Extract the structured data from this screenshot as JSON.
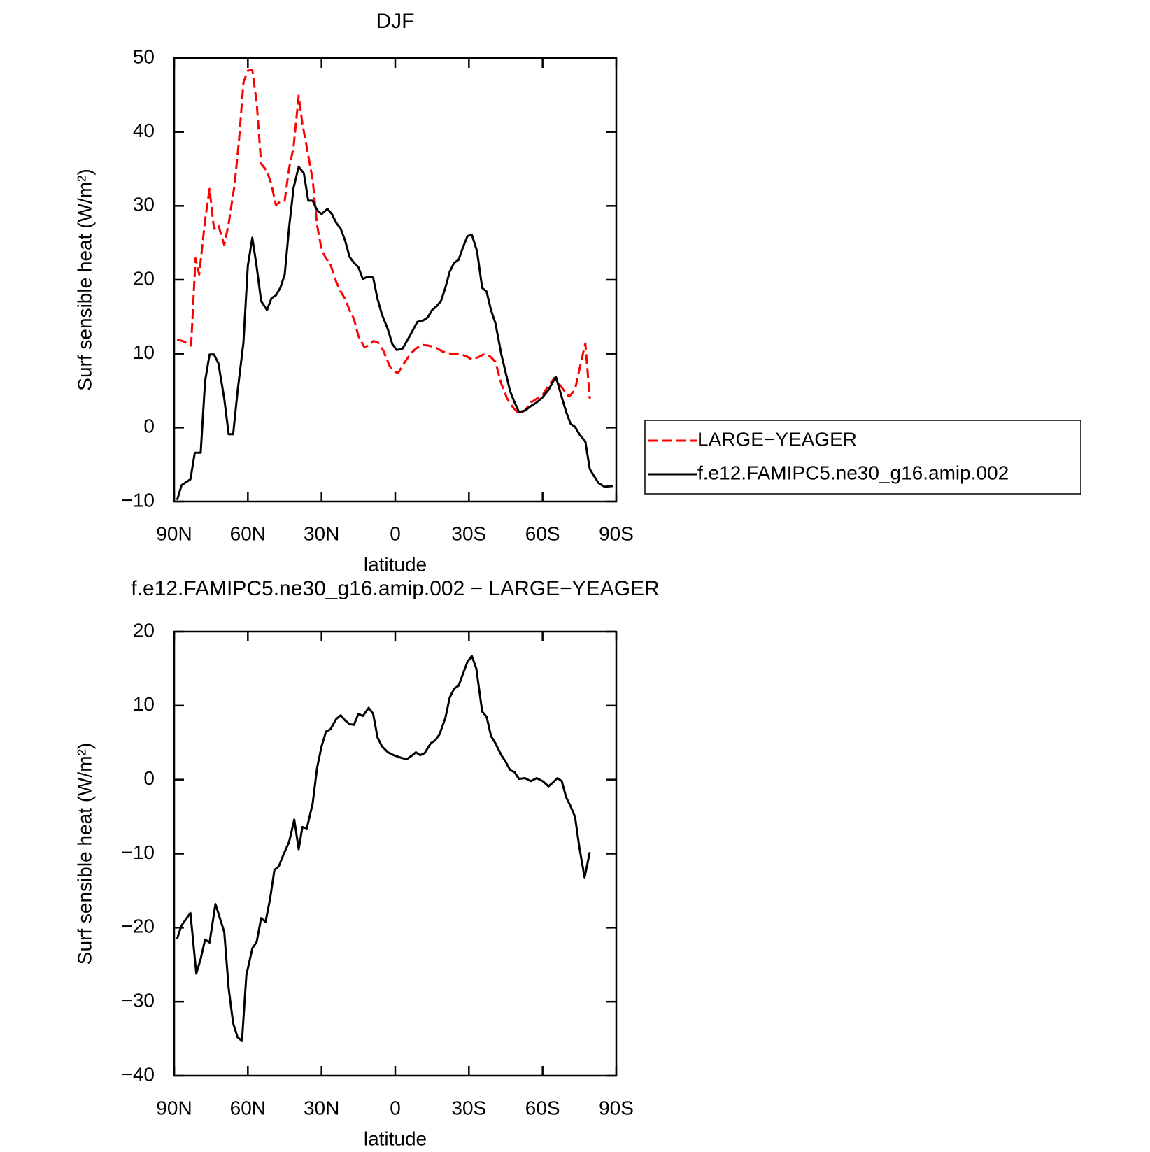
{
  "chart_data": [
    {
      "type": "line",
      "title": "DJF",
      "xlabel": "latitude",
      "ylabel": "Surf sensible heat (W/m²)",
      "xlim": [
        90,
        -90
      ],
      "xticks": [
        {
          "value": 90,
          "label": "90N"
        },
        {
          "value": 60,
          "label": "60N"
        },
        {
          "value": 30,
          "label": "30N"
        },
        0,
        {
          "value": -30,
          "label": "30S"
        },
        {
          "value": -60,
          "label": "60S"
        },
        {
          "value": -90,
          "label": "90S"
        }
      ],
      "ylim": [
        -10,
        50
      ],
      "yticks": [
        {
          "value": -10,
          "label": "−10"
        },
        0,
        10,
        20,
        30,
        40,
        50
      ],
      "legend": "right",
      "series": [
        {
          "name": "LARGE−YEAGER",
          "color": "#ff0000",
          "line_style": "dashed",
          "x": [
            88.8,
            86.4,
            83.1,
            81.3,
            79.8,
            77.4,
            75.6,
            73.8,
            72,
            69.6,
            67.8,
            65.4,
            63.6,
            61.8,
            60,
            58.2,
            56.4,
            54.6,
            52.2,
            50.4,
            48.6,
            46.8,
            45,
            43.2,
            41.4,
            39.3,
            37.8,
            36,
            33.6,
            31.8,
            30,
            28.2,
            26.4,
            24,
            22.2,
            20.4,
            18.6,
            16.8,
            15,
            12.6,
            10.8,
            9,
            7.2,
            4.8,
            2.4,
            0.6,
            -1.2,
            -3.6,
            -6,
            -8.4,
            -10.8,
            -13.2,
            -16.2,
            -19.2,
            -22.8,
            -26.4,
            -28.8,
            -31.2,
            -33.6,
            -36,
            -38.4,
            -40.8,
            -43.2,
            -45.6,
            -48,
            -50.4,
            -52.8,
            -55.2,
            -57.6,
            -60,
            -62.4,
            -64.8,
            -67.2,
            -69,
            -70.8,
            -73.2,
            -75,
            -77.4,
            -79.2
          ],
          "values": [
            11.9,
            11.7,
            11.1,
            22.9,
            20.7,
            28.1,
            32.3,
            26.9,
            27.4,
            24.7,
            27.6,
            32.9,
            38.9,
            46.7,
            48.3,
            48.4,
            43.9,
            35.7,
            34.7,
            32.9,
            30.1,
            30.6,
            30.7,
            35.1,
            37.9,
            44.9,
            41.1,
            37.9,
            33.5,
            27.4,
            24.1,
            22.9,
            22.1,
            19.7,
            18.4,
            17.4,
            15.9,
            14.7,
            12.4,
            10.9,
            11.1,
            11.7,
            11.6,
            10.4,
            8.4,
            7.6,
            7.4,
            8.7,
            9.9,
            10.7,
            11.2,
            11.1,
            10.9,
            10.3,
            10.0,
            9.9,
            9.7,
            9.2,
            9.5,
            9.9,
            9.7,
            8.9,
            5.9,
            3.9,
            2.7,
            1.9,
            2.3,
            3.4,
            3.9,
            4.4,
            5.7,
            6.7,
            5.7,
            4.9,
            4.2,
            5.1,
            7.9,
            11.4,
            3.9
          ]
        },
        {
          "name": "f.e12.FAMIPC5.ne30_g16.amip.002",
          "color": "#000000",
          "line_style": "solid",
          "x": [
            88.8,
            87,
            83.4,
            81.6,
            79.2,
            77.4,
            75.6,
            73.8,
            72,
            69.6,
            67.8,
            66,
            64.2,
            61.8,
            60,
            58.2,
            56.4,
            54.6,
            52.2,
            50.4,
            48.6,
            46.8,
            45,
            43.2,
            41.4,
            39.3,
            37.2,
            35.4,
            33.6,
            31.8,
            30,
            27.6,
            25.8,
            24,
            22.2,
            20.4,
            18.6,
            16.8,
            15,
            13.2,
            11.4,
            9,
            7.2,
            5.4,
            3,
            1.2,
            -0.6,
            -3,
            -5.4,
            -9,
            -11.4,
            -13.2,
            -15,
            -16.8,
            -18.6,
            -20.4,
            -22.2,
            -24,
            -25.8,
            -27.6,
            -29.4,
            -31.2,
            -33.3,
            -35.4,
            -37.2,
            -39,
            -40.8,
            -43.2,
            -45,
            -46.8,
            -48.6,
            -50.4,
            -52.8,
            -55.2,
            -57.6,
            -60,
            -62.4,
            -65.4,
            -67.8,
            -69.6,
            -71.4,
            -73.2,
            -75,
            -77.4,
            -79.2,
            -81,
            -82.8,
            -85.2,
            -88.8
          ],
          "values": [
            -9.8,
            -7.8,
            -7.0,
            -3.4,
            -3.4,
            6.3,
            9.9,
            9.9,
            8.7,
            3.9,
            -0.9,
            -0.9,
            4.9,
            11.5,
            21.9,
            25.7,
            21.7,
            17.1,
            15.9,
            17.5,
            17.9,
            18.9,
            20.7,
            27.1,
            32.4,
            35.3,
            34.4,
            30.7,
            30.7,
            29.4,
            28.9,
            29.6,
            28.9,
            27.7,
            26.9,
            25.3,
            23.1,
            22.3,
            21.7,
            20.1,
            20.4,
            20.3,
            17.4,
            15.3,
            13.3,
            11.3,
            10.5,
            10.7,
            12.1,
            14.3,
            14.5,
            14.9,
            15.9,
            16.4,
            17.1,
            18.9,
            21.1,
            22.3,
            22.7,
            24.4,
            25.9,
            26.1,
            23.9,
            18.9,
            18.4,
            15.9,
            14.1,
            9.9,
            7.4,
            4.9,
            3.4,
            2.1,
            2.3,
            2.9,
            3.4,
            4.1,
            5.1,
            6.9,
            4.1,
            2.1,
            0.5,
            0.1,
            -0.9,
            -1.9,
            -5.6,
            -6.6,
            -7.5,
            -8.0,
            -7.9
          ]
        }
      ]
    },
    {
      "type": "line",
      "title": "f.e12.FAMIPC5.ne30_g16.amip.002 − LARGE−YEAGER",
      "xlabel": "latitude",
      "ylabel": "Surf sensible heat (W/m²)",
      "xlim": [
        90,
        -90
      ],
      "xticks": [
        {
          "value": 90,
          "label": "90N"
        },
        {
          "value": 60,
          "label": "60N"
        },
        {
          "value": 30,
          "label": "30N"
        },
        0,
        {
          "value": -30,
          "label": "30S"
        },
        {
          "value": -60,
          "label": "60S"
        },
        {
          "value": -90,
          "label": "90S"
        }
      ],
      "ylim": [
        -40,
        20
      ],
      "yticks": [
        {
          "value": -40,
          "label": "−40"
        },
        {
          "value": -30,
          "label": "−30"
        },
        {
          "value": -20,
          "label": "−20"
        },
        {
          "value": -10,
          "label": "−10"
        },
        0,
        10,
        20
      ],
      "series": [
        {
          "color": "#000000",
          "line_style": "solid",
          "x": [
            88.8,
            87,
            83.4,
            81,
            79.2,
            77.4,
            75.6,
            73.2,
            71.4,
            69.6,
            67.8,
            66,
            64.2,
            62.4,
            60.6,
            58.2,
            56.4,
            54.6,
            52.8,
            51,
            49.2,
            47.4,
            45.6,
            43.2,
            41.1,
            39.3,
            37.8,
            36,
            33.6,
            31.8,
            30,
            28.2,
            26.4,
            24,
            22.2,
            20.4,
            18.6,
            16.8,
            15,
            13.2,
            10.8,
            9,
            7.2,
            5.4,
            3,
            0.6,
            -1.2,
            -3,
            -4.8,
            -6.6,
            -8.4,
            -10.2,
            -12,
            -14.4,
            -16.2,
            -18,
            -20.4,
            -22.2,
            -24,
            -25.8,
            -27.6,
            -29.4,
            -31.2,
            -33,
            -35.4,
            -37.2,
            -39,
            -40.8,
            -43.2,
            -45,
            -46.8,
            -48.6,
            -50.4,
            -52.8,
            -55.2,
            -57.6,
            -60,
            -62.4,
            -64.2,
            -66,
            -67.8,
            -69.6,
            -71.4,
            -73.2,
            -75,
            -77.1,
            -79.2
          ],
          "values": [
            -21.5,
            -19.7,
            -18.0,
            -26.2,
            -24.2,
            -21.6,
            -22.0,
            -16.8,
            -18.7,
            -20.6,
            -28.2,
            -32.9,
            -34.8,
            -35.3,
            -26.4,
            -22.8,
            -21.9,
            -18.7,
            -19.2,
            -16.2,
            -12.2,
            -11.7,
            -10.2,
            -8.4,
            -5.4,
            -9.4,
            -6.4,
            -6.6,
            -3.2,
            1.6,
            4.5,
            6.5,
            6.8,
            8.2,
            8.7,
            8.0,
            7.5,
            7.4,
            8.9,
            8.6,
            9.7,
            8.9,
            5.7,
            4.5,
            3.7,
            3.3,
            3.1,
            2.9,
            2.8,
            3.2,
            3.7,
            3.3,
            3.6,
            4.9,
            5.3,
            6.1,
            8.3,
            11.1,
            12.3,
            12.7,
            14.3,
            15.9,
            16.7,
            15.0,
            9.2,
            8.5,
            5.9,
            4.9,
            3.3,
            2.4,
            1.3,
            1.0,
            0.1,
            0.2,
            -0.2,
            0.2,
            -0.2,
            -0.9,
            -0.4,
            0.2,
            -0.2,
            -2.4,
            -3.6,
            -5.0,
            -9.2,
            -13.2,
            -9.8
          ]
        }
      ]
    }
  ]
}
